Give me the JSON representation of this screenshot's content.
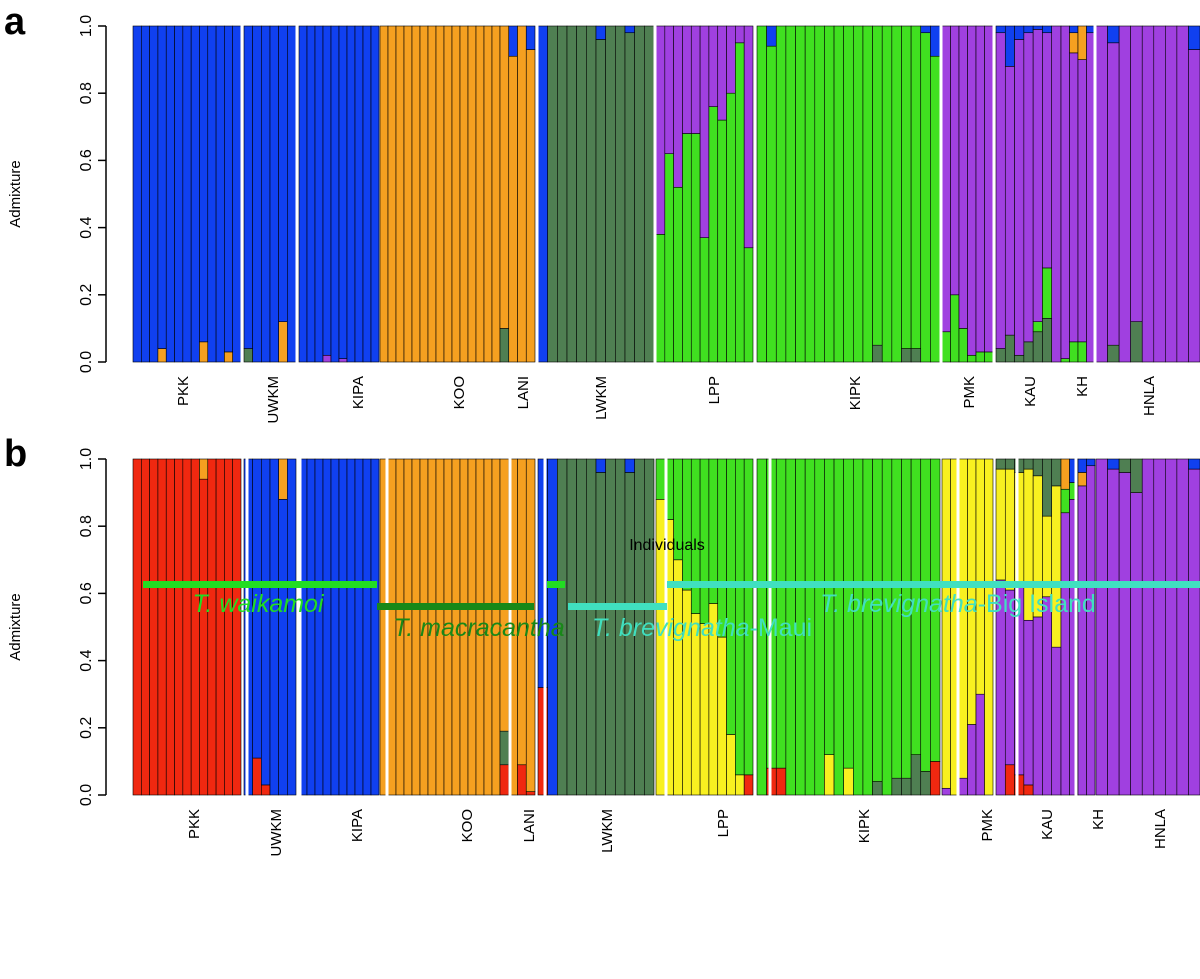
{
  "colors": {
    "blue": "#1040f0",
    "orange": "#f5a020",
    "dkgreen": "#4f7f52",
    "green": "#40e020",
    "purple": "#a040e0",
    "red": "#f02810",
    "yellow": "#f8f020",
    "bright_green": "#22dd22",
    "dark_green": "#188818",
    "turquoise": "#40e0c0"
  },
  "panels": [
    {
      "label": "a",
      "ylabel": "Admixture",
      "ylim": [
        0,
        1
      ],
      "yticks": [
        "0.0",
        "0.2",
        "0.4",
        "0.6",
        "0.8",
        "1.0"
      ],
      "populations": [
        "PKK",
        "UWKM",
        "KIPA",
        "KOO",
        "LANI",
        "LWKM",
        "LPP",
        "KIPK",
        "PMK",
        "KAU",
        "KH",
        "HNLA"
      ]
    },
    {
      "label": "b",
      "ylabel": "Admixture",
      "ylim": [
        0,
        1
      ],
      "yticks": [
        "0.0",
        "0.2",
        "0.4",
        "0.6",
        "0.8",
        "1.0"
      ],
      "populations": [
        "PKK",
        "UWKM",
        "KIPA",
        "KOO",
        "LANI",
        "LWKM",
        "LPP",
        "KIPK",
        "PMK",
        "KAU",
        "KH",
        "HNLA"
      ],
      "xlabel": "Individuals"
    }
  ],
  "species": [
    {
      "name_italic": "T. waikamoi",
      "suffix": "",
      "color": "#22dd22"
    },
    {
      "name_italic": "T. macracantha",
      "suffix": "",
      "color": "#188818"
    },
    {
      "name_italic": "T. brevignatha",
      "suffix": "-Maui",
      "color": "#40e0c0"
    },
    {
      "name_italic": "T. brevignatha",
      "suffix": "-Big Island",
      "color": "#40e0c0"
    }
  ],
  "chart_data": [
    {
      "type": "bar",
      "stacked": true,
      "title": "",
      "xlabel": "",
      "ylabel": "Admixture",
      "ylim": [
        0,
        1
      ],
      "populations": [
        {
          "name": "PKK",
          "n": 13,
          "ancestry": {
            "blue": 0.99,
            "orange": 0.01
          },
          "notes": "orange up to 0.06"
        },
        {
          "name": "UWKM",
          "n": 6,
          "ancestry": {
            "blue": 0.96,
            "orange": 0.03,
            "dkgreen": 0.01
          },
          "notes": "orange up to 0.12"
        },
        {
          "name": "KIPA",
          "n": 10,
          "ancestry": {
            "blue": 1.0
          }
        },
        {
          "name": "KOO",
          "n": 15,
          "ancestry": {
            "orange": 1.0
          }
        },
        {
          "name": "LANI",
          "n": 4,
          "ancestry": {
            "orange": 0.95,
            "dkgreen": 0.03,
            "blue": 0.02
          }
        },
        {
          "name": "LWKM",
          "n": 12,
          "ancestry": {
            "dkgreen": 0.91,
            "blue": 0.09
          }
        },
        {
          "name": "LPP",
          "n": 11,
          "ancestry": {
            "green": 0.58,
            "purple": 0.42
          },
          "notes": "green 0.34-1.0"
        },
        {
          "name": "KIPK",
          "n": 19,
          "ancestry": {
            "green": 0.97,
            "dkgreen": 0.01,
            "blue": 0.01,
            "orange": 0.01
          }
        },
        {
          "name": "PMK",
          "n": 6,
          "ancestry": {
            "purple": 0.93,
            "green": 0.07
          }
        },
        {
          "name": "KAU",
          "n": 7,
          "ancestry": {
            "purple": 0.83,
            "green": 0.09,
            "dkgreen": 0.05,
            "blue": 0.03
          }
        },
        {
          "name": "KH",
          "n": 4,
          "ancestry": {
            "purple": 0.9,
            "green": 0.04,
            "orange": 0.04,
            "blue": 0.02
          }
        },
        {
          "name": "HNLA",
          "n": 9,
          "ancestry": {
            "purple": 0.96,
            "dkgreen": 0.02,
            "blue": 0.02
          }
        }
      ]
    },
    {
      "type": "bar",
      "stacked": true,
      "title": "",
      "xlabel": "Individuals",
      "ylabel": "Admixture",
      "ylim": [
        0,
        1
      ],
      "populations": [
        {
          "name": "PKK",
          "n": 13,
          "ancestry": {
            "red": 0.99,
            "orange": 0.01
          }
        },
        {
          "name": "UWKM",
          "n": 6,
          "ancestry": {
            "blue": 0.94,
            "red": 0.03,
            "orange": 0.03
          }
        },
        {
          "name": "KIPA",
          "n": 10,
          "ancestry": {
            "blue": 1.0
          }
        },
        {
          "name": "KOO",
          "n": 15,
          "ancestry": {
            "orange": 1.0
          }
        },
        {
          "name": "LANI",
          "n": 4,
          "ancestry": {
            "orange": 0.9,
            "red": 0.06,
            "dkgreen": 0.04
          }
        },
        {
          "name": "LWKM",
          "n": 12,
          "ancestry": {
            "dkgreen": 0.88,
            "blue": 0.12
          },
          "notes": "one bar red 0.32 + blue"
        },
        {
          "name": "LPP",
          "n": 11,
          "ancestry": {
            "yellow": 0.5,
            "green": 0.5
          }
        },
        {
          "name": "KIPK",
          "n": 19,
          "ancestry": {
            "green": 0.95,
            "red": 0.02,
            "yellow": 0.02,
            "dkgreen": 0.01
          }
        },
        {
          "name": "PMK",
          "n": 6,
          "ancestry": {
            "yellow": 0.85,
            "purple": 0.13,
            "red": 0.02
          }
        },
        {
          "name": "KAU",
          "n": 7,
          "ancestry": {
            "purple": 0.55,
            "yellow": 0.35,
            "red": 0.04,
            "dkgreen": 0.04,
            "blue": 0.02
          }
        },
        {
          "name": "KH",
          "n": 4,
          "ancestry": {
            "purple": 0.94,
            "green": 0.03,
            "orange": 0.02,
            "blue": 0.01
          }
        },
        {
          "name": "HNLA",
          "n": 9,
          "ancestry": {
            "purple": 0.97,
            "dkgreen": 0.02,
            "blue": 0.01
          }
        }
      ]
    }
  ]
}
